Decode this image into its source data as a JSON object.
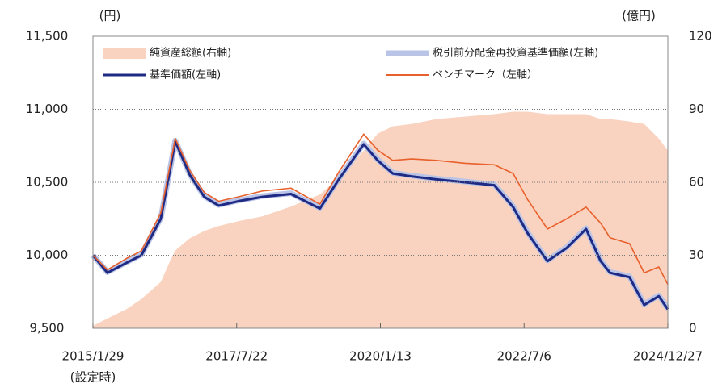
{
  "chart_data": {
    "type": "line",
    "y_label": "(円)",
    "y2_label": "(億円)",
    "x": [
      "2015/1/29",
      "2015/4/30",
      "2015/8/31",
      "2015/11/30",
      "2016/3/31",
      "2016/5/31",
      "2016/6/30",
      "2016/9/30",
      "2016/12/30",
      "2017/3/31",
      "2017/7/31",
      "2017/12/29",
      "2018/6/29",
      "2018/12/28",
      "2019/4/26",
      "2019/9/30",
      "2019/12/27",
      "2020/3/31",
      "2020/7/31",
      "2020/12/30",
      "2021/6/30",
      "2021/12/30",
      "2022/4/28",
      "2022/7/29",
      "2022/11/30",
      "2023/3/31",
      "2023/7/31",
      "2023/10/31",
      "2023/12/29",
      "2024/4/30",
      "2024/7/31",
      "2024/10/31",
      "2024/12/27"
    ],
    "xlim": [
      "2015/1/29",
      "2024/12/27"
    ],
    "xticks": [
      "2015/1/29",
      "2017/7/22",
      "2020/1/13",
      "2022/7/6",
      "2024/12/27"
    ],
    "xtick_note": "(設定時)",
    "ylim": [
      9500,
      11500
    ],
    "yticks": [
      {
        "value": 9500,
        "label": "9,500"
      },
      {
        "value": 10000,
        "label": "10,000"
      },
      {
        "value": 10500,
        "label": "10,500"
      },
      {
        "value": 11000,
        "label": "11,000"
      },
      {
        "value": 11500,
        "label": "11,500"
      }
    ],
    "y2lim": [
      0,
      120
    ],
    "y2ticks": [
      0,
      30,
      60,
      90,
      120
    ],
    "grid": true,
    "series": [
      {
        "name": "純資産総額(右軸)",
        "color": "#f9d3bf",
        "kind": "area",
        "axis": "y2",
        "values": [
          1,
          4,
          8,
          12,
          19,
          28,
          32,
          37,
          40,
          42,
          44,
          46,
          50,
          55,
          62,
          73,
          80,
          83,
          84,
          86,
          87,
          88,
          89,
          89,
          88,
          88,
          88,
          86,
          86,
          85,
          84,
          78,
          73
        ]
      },
      {
        "name": "税引前分配金再投資基準価額(左軸)",
        "color": "#b9c4e6",
        "kind": "thick",
        "values": [
          10000,
          9885,
          9955,
          10005,
          10255,
          10605,
          10785,
          10555,
          10405,
          10345,
          10375,
          10405,
          10425,
          10325,
          10525,
          10765,
          10655,
          10565,
          10545,
          10525,
          10505,
          10485,
          10335,
          10155,
          9965,
          10055,
          10185,
          9965,
          9885,
          9855,
          9665,
          9725,
          9635
        ]
      },
      {
        "name": "基準価額(左軸)",
        "color": "#1f2a85",
        "kind": "main",
        "values": [
          10000,
          9880,
          9950,
          10000,
          10250,
          10600,
          10780,
          10550,
          10400,
          10340,
          10370,
          10400,
          10420,
          10320,
          10520,
          10760,
          10650,
          10560,
          10540,
          10520,
          10500,
          10480,
          10330,
          10150,
          9960,
          10050,
          10180,
          9960,
          9880,
          9850,
          9660,
          9720,
          9630
        ]
      },
      {
        "name": "ベンチマーク（左軸）",
        "color": "#e8602c",
        "kind": "thin",
        "values": [
          10000,
          9900,
          9980,
          10030,
          10290,
          10630,
          10800,
          10580,
          10430,
          10370,
          10400,
          10440,
          10460,
          10350,
          10570,
          10830,
          10720,
          10650,
          10660,
          10650,
          10630,
          10620,
          10560,
          10380,
          10180,
          10250,
          10330,
          10220,
          10120,
          10080,
          9880,
          9920,
          9800
        ]
      }
    ]
  }
}
